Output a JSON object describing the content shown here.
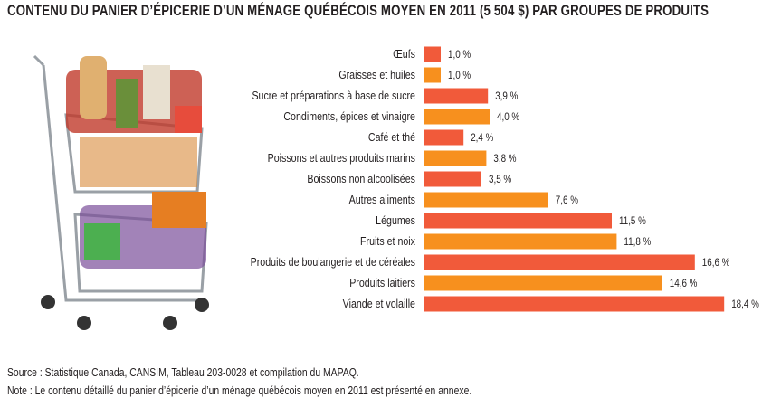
{
  "chart_data": {
    "type": "bar",
    "orientation": "horizontal",
    "title": "CONTENU DU PANIER D’ÉPICERIE D’UN MÉNAGE QUÉBÉCOIS MOYEN EN 2011 (5 504 $) PAR GROUPES DE PRODUITS",
    "categories": [
      "Œufs",
      "Graisses et huiles",
      "Sucre et préparations à base de sucre",
      "Condiments, épices et vinaigre",
      "Café et thé",
      "Poissons et autres produits marins",
      "Boissons non alcoolisées",
      "Autres aliments",
      "Légumes",
      "Fruits et noix",
      "Produits de boulangerie et de céréales",
      "Produits laitiers",
      "Viande et volaille"
    ],
    "values": [
      1.0,
      1.0,
      3.9,
      4.0,
      2.4,
      3.8,
      3.5,
      7.6,
      11.5,
      11.8,
      16.6,
      14.6,
      18.4
    ],
    "value_labels": [
      "1,0 %",
      "1,0 %",
      "3,9 %",
      "4,0 %",
      "2,4 %",
      "3,8 %",
      "3,5 %",
      "7,6 %",
      "11,5 %",
      "11,8 %",
      "16,6 %",
      "14,6 %",
      "18,4 %"
    ],
    "unit": "%",
    "xlim": [
      0,
      20
    ],
    "grid": false,
    "colors": [
      "#f15a3a",
      "#f7901e"
    ]
  },
  "footer": {
    "source": "Source : Statistique Canada, CANSIM, Tableau 203-0028 et compilation du MAPAQ.",
    "note": "Note : Le contenu détaillé du panier d’épicerie d’un ménage québécois moyen en 2011 est présenté en annexe."
  }
}
